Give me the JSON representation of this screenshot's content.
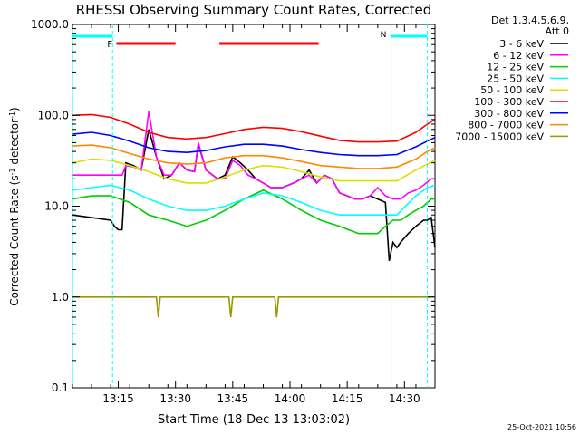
{
  "chart_data": {
    "type": "line",
    "title": "RHESSI Observing Summary Count Rates, Corrected",
    "xlabel": "Start Time (18-Dec-13 13:03:02)",
    "ylabel_main": "Corrected Count Rate (s",
    "ylabel_sup": "-1",
    "ylabel_mid": " detector",
    "ylabel_end": ")",
    "y_scale": "log",
    "ylim": [
      0.1,
      1000
    ],
    "xlim_minutes": [
      0,
      95
    ],
    "yticks": [
      {
        "v": 0.1,
        "label": "0.1"
      },
      {
        "v": 1,
        "label": "1.0"
      },
      {
        "v": 10,
        "label": "10.0"
      },
      {
        "v": 100,
        "label": "100.0"
      },
      {
        "v": 1000,
        "label": "1000.0"
      }
    ],
    "xticks": [
      {
        "t": 12,
        "label": "13:15"
      },
      {
        "t": 27,
        "label": "13:30"
      },
      {
        "t": 42,
        "label": "13:45"
      },
      {
        "t": 57,
        "label": "14:00"
      },
      {
        "t": 72,
        "label": "14:15"
      },
      {
        "t": 87,
        "label": "14:30"
      }
    ],
    "legend_header": [
      "Det 1,3,4,5,6,9,",
      "Att 0"
    ],
    "legend_position": "right",
    "series": [
      {
        "name": "3 - 6 keV",
        "color": "#000000",
        "x": [
          0,
          10,
          11,
          12,
          13,
          14,
          16,
          18,
          20,
          22,
          24,
          26,
          28,
          30,
          32,
          33,
          35,
          38,
          40,
          42,
          44,
          46,
          48,
          50,
          52,
          55,
          58,
          60,
          62,
          64,
          66,
          68,
          70,
          72,
          74,
          76,
          78,
          80,
          82,
          83,
          84,
          85,
          86,
          88,
          90,
          92,
          93,
          94,
          95
        ],
        "y": [
          8,
          7,
          6,
          5.5,
          5.5,
          30,
          28,
          25,
          70,
          35,
          20,
          22,
          30,
          25,
          24,
          48,
          25,
          20,
          22,
          35,
          30,
          25,
          20,
          18,
          16,
          16,
          18,
          20,
          25,
          18,
          22,
          20,
          14,
          13,
          12,
          12,
          13,
          12,
          11,
          2.5,
          4,
          3.5,
          4,
          5,
          6,
          7,
          7,
          7.5,
          3.5
        ]
      },
      {
        "name": "6 - 12 keV",
        "color": "#ff00ff",
        "x": [
          0,
          10,
          12,
          13,
          14,
          16,
          18,
          20,
          22,
          24,
          26,
          28,
          30,
          32,
          33,
          35,
          38,
          40,
          42,
          44,
          46,
          48,
          50,
          52,
          55,
          58,
          60,
          62,
          64,
          66,
          68,
          70,
          72,
          74,
          76,
          78,
          80,
          82,
          84,
          86,
          88,
          90,
          92,
          94,
          95
        ],
        "y": [
          22,
          22,
          22,
          22,
          28,
          27,
          25,
          110,
          35,
          22,
          22,
          30,
          25,
          24,
          50,
          25,
          20,
          20,
          32,
          28,
          22,
          20,
          18,
          16,
          16,
          18,
          20,
          22,
          18,
          22,
          20,
          14,
          13,
          12,
          12,
          13,
          16,
          13,
          12,
          12,
          14,
          15,
          17,
          20,
          20
        ]
      },
      {
        "name": "12 - 25 keV",
        "color": "#00cc00",
        "x": [
          0,
          5,
          10,
          15,
          20,
          25,
          30,
          35,
          40,
          45,
          50,
          55,
          60,
          65,
          70,
          75,
          80,
          82,
          84,
          86,
          88,
          90,
          92,
          94,
          95
        ],
        "y": [
          12,
          13,
          13,
          11,
          8,
          7,
          6,
          7,
          9,
          12,
          15,
          12,
          9,
          7,
          6,
          5,
          5,
          6,
          7,
          7,
          8,
          9,
          10,
          12,
          12
        ]
      },
      {
        "name": "25 - 50 keV",
        "color": "#00ffff",
        "x": [
          0,
          5,
          10,
          15,
          20,
          25,
          30,
          35,
          40,
          45,
          50,
          55,
          60,
          65,
          70,
          75,
          80,
          85,
          90,
          93,
          95
        ],
        "y": [
          15,
          16,
          17,
          15,
          12,
          10,
          9,
          9,
          10,
          12,
          14,
          13,
          11,
          9,
          8,
          8,
          8,
          8,
          13,
          16,
          17
        ]
      },
      {
        "name": "50 - 100 keV",
        "color": "#dddd00",
        "x": [
          0,
          5,
          10,
          15,
          20,
          25,
          30,
          35,
          40,
          45,
          50,
          55,
          60,
          65,
          70,
          75,
          80,
          85,
          90,
          93,
          95
        ],
        "y": [
          30,
          33,
          32,
          28,
          24,
          20,
          18,
          18,
          21,
          25,
          28,
          27,
          24,
          21,
          19,
          19,
          19,
          19,
          25,
          29,
          32
        ]
      },
      {
        "name": "100 - 300 keV",
        "color": "#ff0000",
        "x": [
          0,
          5,
          10,
          15,
          20,
          25,
          30,
          35,
          40,
          45,
          50,
          55,
          60,
          65,
          70,
          75,
          80,
          85,
          90,
          93,
          95
        ],
        "y": [
          100,
          102,
          95,
          80,
          65,
          57,
          55,
          57,
          63,
          70,
          74,
          72,
          66,
          59,
          53,
          51,
          51,
          52,
          65,
          80,
          90
        ]
      },
      {
        "name": "300 - 800 keV",
        "color": "#0000ff",
        "x": [
          0,
          5,
          10,
          15,
          20,
          25,
          30,
          35,
          40,
          45,
          50,
          55,
          60,
          65,
          70,
          75,
          80,
          85,
          90,
          93,
          95
        ],
        "y": [
          62,
          65,
          60,
          52,
          44,
          40,
          39,
          41,
          45,
          48,
          48,
          46,
          42,
          39,
          37,
          36,
          36,
          37,
          45,
          52,
          57
        ]
      },
      {
        "name": "800 - 7000 keV",
        "color": "#ff8800",
        "x": [
          0,
          5,
          10,
          15,
          20,
          25,
          30,
          35,
          40,
          45,
          50,
          55,
          60,
          65,
          70,
          75,
          80,
          85,
          90,
          93,
          95
        ],
        "y": [
          46,
          47,
          44,
          38,
          33,
          30,
          29,
          30,
          34,
          36,
          36,
          34,
          31,
          28,
          27,
          26,
          26,
          27,
          33,
          40,
          44
        ]
      },
      {
        "name": "7000 - 15000 keV",
        "color": "#999900",
        "x": [
          0,
          9,
          9.5,
          10,
          11,
          12,
          22,
          22.5,
          23,
          41,
          41.5,
          42,
          53,
          53.5,
          54,
          89,
          90,
          92,
          94,
          95
        ],
        "y": [
          1,
          1,
          1,
          1,
          1,
          1,
          1,
          0.6,
          1,
          1,
          0.6,
          1,
          1,
          0.6,
          1,
          1,
          1,
          1,
          1,
          1
        ]
      }
    ],
    "attenuator_bars": [
      {
        "label": "F",
        "color": "#ff0000",
        "x0": 11.5,
        "x1": 27
      },
      {
        "label": "",
        "color": "#ff0000",
        "x0": 38.5,
        "x1": 64.5
      }
    ],
    "night_bars": [
      {
        "label": "",
        "color": "#00ffff",
        "x0": 0,
        "x1": 10.5
      },
      {
        "label": "N",
        "color": "#00ffff",
        "x0": 83.5,
        "x1": 93
      }
    ],
    "vlines_dashed": [
      10.5,
      93
    ],
    "vlines_solid": [
      0,
      83.5
    ],
    "footer_date": "25-Oct-2021 10:56"
  }
}
